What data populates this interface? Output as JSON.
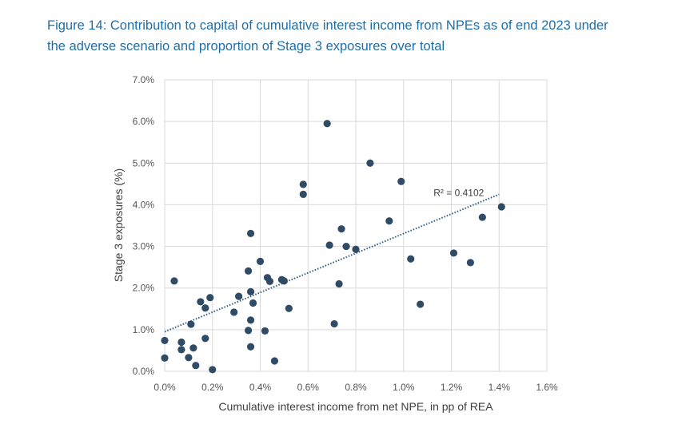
{
  "figure": {
    "title_line1": "Figure 14: Contribution to capital of cumulative interest income from NPEs as of end 2023 under",
    "title_line2": "the adverse scenario and proportion of Stage 3 exposures over total"
  },
  "colors": {
    "title": "#1f6ea8",
    "point": "#2f4b66",
    "trendline": "#2f5b85",
    "grid": "#d9d9d9"
  },
  "chart_data": {
    "type": "scatter",
    "title": "Figure 14: Contribution to capital of cumulative interest income from NPEs as of end 2023 under the adverse scenario and proportion of Stage 3 exposures over total",
    "xlabel": "Cumulative interest income from net NPE, in pp of REA",
    "ylabel": "Stage 3 exposures (%)",
    "xlim": [
      0,
      1.6
    ],
    "ylim": [
      0,
      7
    ],
    "x_ticks": [
      0,
      0.2,
      0.4,
      0.6,
      0.8,
      1.0,
      1.2,
      1.4,
      1.6
    ],
    "x_tick_labels": [
      "0.0%",
      "0.2%",
      "0.4%",
      "0.6%",
      "0.8%",
      "1.0%",
      "1.2%",
      "1.4%",
      "1.6%"
    ],
    "y_ticks": [
      0,
      1,
      2,
      3,
      4,
      5,
      6,
      7
    ],
    "y_tick_labels": [
      "0.0%",
      "1.0%",
      "2.0%",
      "3.0%",
      "4.0%",
      "5.0%",
      "6.0%",
      "7.0%"
    ],
    "grid": true,
    "trendline": {
      "type": "linear",
      "x": [
        0,
        1.4
      ],
      "y": [
        0.95,
        4.25
      ],
      "r2_label": "R² = 0.4102"
    },
    "points": [
      {
        "x": 0.0,
        "y": 0.74
      },
      {
        "x": 0.0,
        "y": 0.32
      },
      {
        "x": 0.04,
        "y": 2.17
      },
      {
        "x": 0.07,
        "y": 0.7
      },
      {
        "x": 0.07,
        "y": 0.52
      },
      {
        "x": 0.1,
        "y": 0.33
      },
      {
        "x": 0.11,
        "y": 1.13
      },
      {
        "x": 0.12,
        "y": 0.56
      },
      {
        "x": 0.13,
        "y": 0.14
      },
      {
        "x": 0.15,
        "y": 1.67
      },
      {
        "x": 0.17,
        "y": 1.52
      },
      {
        "x": 0.17,
        "y": 0.79
      },
      {
        "x": 0.19,
        "y": 1.77
      },
      {
        "x": 0.2,
        "y": 0.04
      },
      {
        "x": 0.29,
        "y": 1.42
      },
      {
        "x": 0.31,
        "y": 1.8
      },
      {
        "x": 0.35,
        "y": 2.41
      },
      {
        "x": 0.35,
        "y": 0.98
      },
      {
        "x": 0.36,
        "y": 3.31
      },
      {
        "x": 0.36,
        "y": 1.91
      },
      {
        "x": 0.36,
        "y": 1.23
      },
      {
        "x": 0.36,
        "y": 0.59
      },
      {
        "x": 0.37,
        "y": 1.64
      },
      {
        "x": 0.4,
        "y": 2.64
      },
      {
        "x": 0.42,
        "y": 0.97
      },
      {
        "x": 0.43,
        "y": 2.25
      },
      {
        "x": 0.44,
        "y": 2.16
      },
      {
        "x": 0.46,
        "y": 0.25
      },
      {
        "x": 0.49,
        "y": 2.2
      },
      {
        "x": 0.5,
        "y": 2.17
      },
      {
        "x": 0.52,
        "y": 1.51
      },
      {
        "x": 0.58,
        "y": 4.49
      },
      {
        "x": 0.58,
        "y": 4.25
      },
      {
        "x": 0.68,
        "y": 5.95
      },
      {
        "x": 0.69,
        "y": 3.03
      },
      {
        "x": 0.71,
        "y": 1.14
      },
      {
        "x": 0.73,
        "y": 2.1
      },
      {
        "x": 0.74,
        "y": 3.42
      },
      {
        "x": 0.76,
        "y": 3.0
      },
      {
        "x": 0.8,
        "y": 2.93
      },
      {
        "x": 0.86,
        "y": 5.0
      },
      {
        "x": 0.94,
        "y": 3.61
      },
      {
        "x": 0.99,
        "y": 4.56
      },
      {
        "x": 1.03,
        "y": 2.7
      },
      {
        "x": 1.07,
        "y": 1.61
      },
      {
        "x": 1.21,
        "y": 2.84
      },
      {
        "x": 1.28,
        "y": 2.61
      },
      {
        "x": 1.33,
        "y": 3.7
      },
      {
        "x": 1.41,
        "y": 3.95
      }
    ]
  }
}
